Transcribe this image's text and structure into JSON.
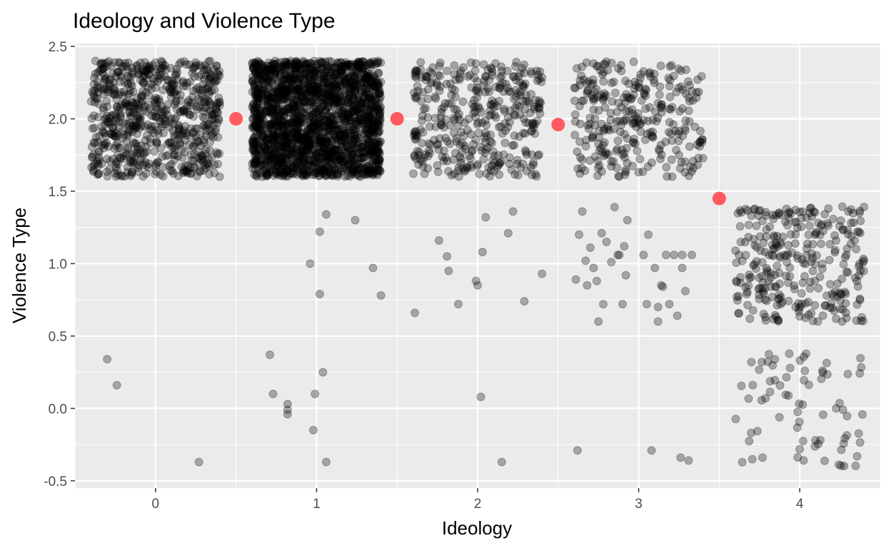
{
  "chart_data": {
    "type": "scatter",
    "title": "Ideology and Violence Type",
    "xlabel": "Ideology",
    "ylabel": "Violence Type",
    "xlim": [
      -0.5,
      4.5
    ],
    "ylim": [
      -0.55,
      2.52
    ],
    "x_ticks": [
      "0",
      "1",
      "2",
      "3",
      "4"
    ],
    "y_ticks": [
      "-0.5",
      "0.0",
      "0.5",
      "1.0",
      "1.5",
      "2.0",
      "2.5"
    ],
    "grid": true,
    "background": "#ebebeb",
    "point_color": "#000000",
    "point_alpha": 0.3,
    "highlight_color": "#ff5a5f",
    "series": [
      {
        "role": "jittered-observations",
        "points": [
          [
            -0.3,
            0.34
          ],
          [
            -0.24,
            0.16
          ],
          [
            0.27,
            -0.37
          ],
          [
            0.71,
            0.37
          ],
          [
            0.73,
            0.1
          ],
          [
            0.82,
            0.03
          ],
          [
            0.82,
            -0.01
          ],
          [
            0.82,
            -0.04
          ],
          [
            0.96,
            1.0
          ],
          [
            0.98,
            -0.15
          ],
          [
            0.99,
            0.1
          ],
          [
            1.02,
            1.22
          ],
          [
            1.02,
            0.79
          ],
          [
            1.04,
            0.25
          ],
          [
            1.06,
            1.34
          ],
          [
            1.06,
            -0.37
          ],
          [
            1.24,
            1.3
          ],
          [
            1.35,
            0.97
          ],
          [
            1.4,
            0.78
          ],
          [
            1.61,
            0.66
          ],
          [
            1.76,
            1.16
          ],
          [
            1.81,
            1.05
          ],
          [
            1.82,
            0.95
          ],
          [
            1.88,
            0.72
          ],
          [
            1.99,
            0.88
          ],
          [
            2.0,
            0.85
          ],
          [
            2.02,
            0.08
          ],
          [
            2.03,
            1.08
          ],
          [
            2.05,
            1.32
          ],
          [
            2.15,
            -0.37
          ],
          [
            2.19,
            1.21
          ],
          [
            2.22,
            1.36
          ],
          [
            2.29,
            0.74
          ],
          [
            2.4,
            0.93
          ],
          [
            2.61,
            0.89
          ],
          [
            2.62,
            -0.29
          ],
          [
            2.63,
            1.2
          ],
          [
            2.65,
            1.36
          ],
          [
            2.67,
            1.02
          ],
          [
            2.68,
            0.85
          ],
          [
            2.7,
            1.11
          ],
          [
            2.72,
            0.97
          ],
          [
            2.74,
            0.88
          ],
          [
            2.75,
            0.6
          ],
          [
            2.77,
            1.21
          ],
          [
            2.78,
            0.72
          ],
          [
            2.8,
            1.15
          ],
          [
            2.83,
            1.01
          ],
          [
            2.85,
            1.39
          ],
          [
            2.87,
            1.06
          ],
          [
            2.88,
            1.06
          ],
          [
            2.9,
            0.72
          ],
          [
            2.91,
            1.12
          ],
          [
            2.92,
            0.92
          ],
          [
            2.93,
            1.3
          ],
          [
            3.03,
            1.06
          ],
          [
            3.05,
            0.72
          ],
          [
            3.06,
            1.2
          ],
          [
            3.08,
            -0.29
          ],
          [
            3.1,
            0.97
          ],
          [
            3.12,
            0.7
          ],
          [
            3.12,
            0.6
          ],
          [
            3.14,
            0.85
          ],
          [
            3.15,
            0.84
          ],
          [
            3.17,
            1.06
          ],
          [
            3.19,
            0.72
          ],
          [
            3.22,
            1.06
          ],
          [
            3.24,
            0.64
          ],
          [
            3.26,
            -0.34
          ],
          [
            3.27,
            1.06
          ],
          [
            3.27,
            0.97
          ],
          [
            3.29,
            0.81
          ],
          [
            3.31,
            -0.36
          ],
          [
            3.33,
            1.06
          ]
        ]
      },
      {
        "role": "dense-clusters",
        "clusters": [
          {
            "x": 0,
            "x_range": [
              -0.4,
              0.4
            ],
            "y_range": [
              1.6,
              2.4
            ],
            "count": 700
          },
          {
            "x": 1,
            "x_range": [
              -0.4,
              0.4
            ],
            "y_range": [
              1.6,
              2.4
            ],
            "count": 2000
          },
          {
            "x": 2,
            "x_range": [
              -0.4,
              0.4
            ],
            "y_range": [
              1.6,
              2.4
            ],
            "count": 380
          },
          {
            "x": 3,
            "x_range": [
              -0.4,
              0.4
            ],
            "y_range": [
              1.6,
              2.4
            ],
            "count": 300
          },
          {
            "x": 4,
            "x_range": [
              -0.4,
              0.4
            ],
            "y_range": [
              0.6,
              1.4
            ],
            "count": 300
          },
          {
            "x": 4,
            "x_range": [
              -0.4,
              0.4
            ],
            "y_range": [
              -0.4,
              0.4
            ],
            "count": 75
          }
        ]
      },
      {
        "role": "highlighted-points",
        "points": [
          [
            0.5,
            2.0
          ],
          [
            1.5,
            2.0
          ],
          [
            2.5,
            1.96
          ],
          [
            3.5,
            1.45
          ]
        ]
      }
    ]
  }
}
